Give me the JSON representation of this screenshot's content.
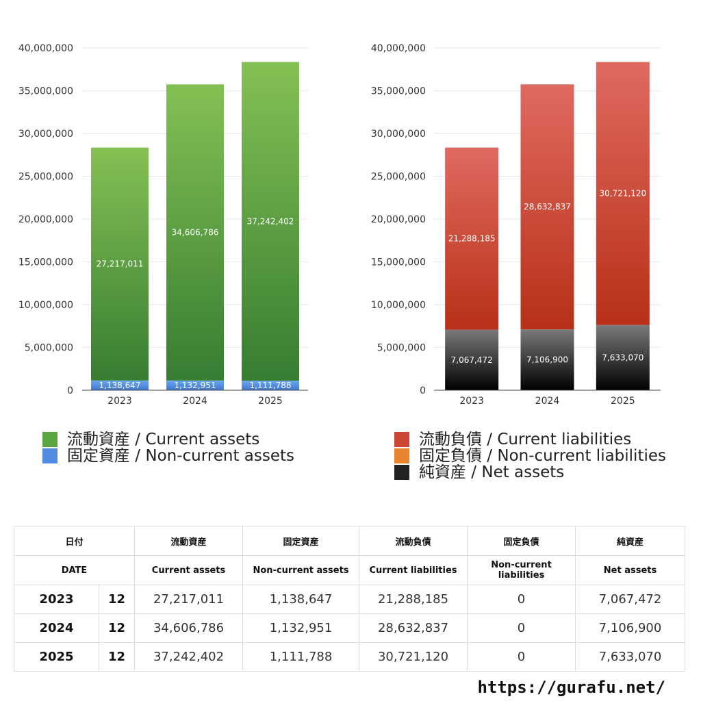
{
  "chart_data": [
    {
      "type": "bar",
      "stacked": true,
      "categories": [
        "2023",
        "2024",
        "2025"
      ],
      "ylim": [
        0,
        40000000
      ],
      "yticks": [
        0,
        5000000,
        10000000,
        15000000,
        20000000,
        25000000,
        30000000,
        35000000,
        40000000
      ],
      "grid": true,
      "legend_position": "bottom",
      "series": [
        {
          "name": "固定資産 / Non-current assets",
          "values": [
            1138647,
            1132951,
            1111788
          ],
          "colors": [
            "#6aa8ee",
            "#3f77cf"
          ]
        },
        {
          "name": "流動資産 / Current assets",
          "values": [
            27217011,
            34606786,
            37242402
          ],
          "colors": [
            "#84c154",
            "#377d32"
          ]
        }
      ]
    },
    {
      "type": "bar",
      "stacked": true,
      "categories": [
        "2023",
        "2024",
        "2025"
      ],
      "ylim": [
        0,
        40000000
      ],
      "yticks": [
        0,
        5000000,
        10000000,
        15000000,
        20000000,
        25000000,
        30000000,
        35000000,
        40000000
      ],
      "grid": true,
      "legend_position": "bottom",
      "series": [
        {
          "name": "純資産 / Net assets",
          "values": [
            7067472,
            7106900,
            7633070
          ],
          "colors": [
            "#7a7a7a",
            "#000000"
          ]
        },
        {
          "name": "固定負債 / Non-current liabilities",
          "values": [
            0,
            0,
            0
          ],
          "colors": [
            "#f0a050",
            "#e07a20"
          ]
        },
        {
          "name": "流動負債 / Current liabilities",
          "values": [
            21288185,
            28632837,
            30721120
          ],
          "colors": [
            "#df6a60",
            "#b83018"
          ]
        }
      ]
    }
  ],
  "legend_assets": [
    {
      "label": "流動資産 / Current assets",
      "color": "#5aa53e"
    },
    {
      "label": "固定資産 / Non-current assets",
      "color": "#4f8be0"
    }
  ],
  "legend_liabilities": [
    {
      "label": "流動負債 / Current liabilities",
      "color": "#cc4535"
    },
    {
      "label": "固定負債 / Non-current liabilities",
      "color": "#e8842e"
    },
    {
      "label": "純資産 / Net assets",
      "color": "#222222"
    }
  ],
  "table": {
    "header_jp": [
      "日付",
      "流動資産",
      "固定資産",
      "流動負債",
      "固定負債",
      "純資産"
    ],
    "header_en": [
      "DATE",
      "Current assets",
      "Non-current assets",
      "Current liabilities",
      "Non-current liabilities",
      "Net assets"
    ],
    "rows": [
      {
        "year": "2023",
        "month": "12",
        "values": [
          "27,217,011",
          "1,138,647",
          "21,288,185",
          "0",
          "7,067,472"
        ]
      },
      {
        "year": "2024",
        "month": "12",
        "values": [
          "34,606,786",
          "1,132,951",
          "28,632,837",
          "0",
          "7,106,900"
        ]
      },
      {
        "year": "2025",
        "month": "12",
        "values": [
          "37,242,402",
          "1,111,788",
          "30,721,120",
          "0",
          "7,633,070"
        ]
      }
    ]
  },
  "source": "https://gurafu.net/"
}
